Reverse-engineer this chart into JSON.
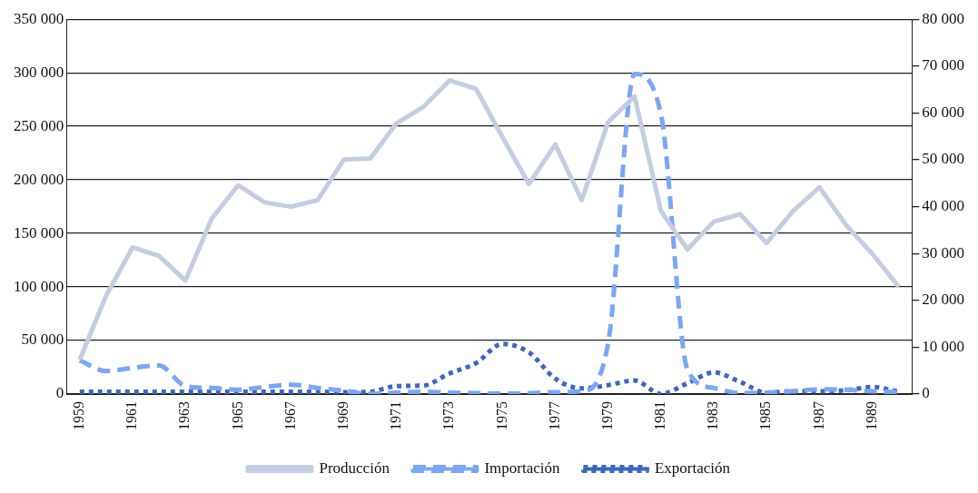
{
  "chart_data": {
    "type": "line",
    "categories": [
      "1959",
      null,
      "1961",
      null,
      "1963",
      null,
      "1965",
      null,
      "1967",
      null,
      "1969",
      null,
      "1971",
      null,
      "1973",
      null,
      "1975",
      null,
      "1977",
      null,
      "1979",
      null,
      "1981",
      null,
      "1983",
      null,
      "1985",
      null,
      "1987",
      null,
      "1989",
      null
    ],
    "series": [
      {
        "name": "Producción",
        "color": "#c5cde3",
        "line_style": "solid",
        "values": [
          32000,
          92000,
          137000,
          129000,
          106000,
          164000,
          195000,
          179000,
          175000,
          181000,
          219000,
          220000,
          253000,
          268000,
          293000,
          285000,
          240000,
          196000,
          233000,
          181000,
          254000,
          278000,
          171000,
          135000,
          161000,
          168000,
          141000,
          171000,
          193000,
          158000,
          131000,
          100000
        ]
      },
      {
        "name": "Importación",
        "color": "#7aa6f5",
        "line_style": "dashed",
        "axis": "y2",
        "values": [
          7200,
          4900,
          5600,
          6100,
          1700,
          1300,
          900,
          1500,
          2000,
          1300,
          700,
          0,
          300,
          500,
          300,
          200,
          100,
          200,
          400,
          600,
          10800,
          68300,
          59700,
          5300,
          1300,
          200,
          300,
          600,
          1000,
          900,
          600,
          400
        ]
      },
      {
        "name": "Exportación",
        "color": "#3d67bf",
        "line_style": "dotted",
        "axis": "y2",
        "values": [
          500,
          500,
          500,
          500,
          500,
          500,
          500,
          500,
          500,
          500,
          400,
          500,
          1700,
          1800,
          4400,
          6600,
          10700,
          8900,
          3300,
          1200,
          1900,
          2900,
          0,
          2300,
          4600,
          2600,
          300,
          600,
          600,
          800,
          1500,
          500
        ]
      }
    ],
    "ylim": [
      0,
      350000
    ],
    "yticks": [
      0,
      {
        "value": 50000,
        "label": "50 000"
      },
      {
        "value": 100000,
        "label": "100 000"
      },
      {
        "value": 150000,
        "label": "150 000"
      },
      {
        "value": 200000,
        "label": "200 000"
      },
      {
        "value": 250000,
        "label": "250 000"
      },
      {
        "value": 300000,
        "label": "300 000"
      },
      {
        "value": 350000,
        "label": "350 000"
      }
    ],
    "y2lim": [
      0,
      80000
    ],
    "y2ticks": [
      0,
      {
        "value": 10000,
        "label": "10 000"
      },
      {
        "value": 20000,
        "label": "20 000"
      },
      {
        "value": 30000,
        "label": "30 000"
      },
      {
        "value": 40000,
        "label": "40 000"
      },
      {
        "value": 50000,
        "label": "50 000"
      },
      {
        "value": 60000,
        "label": "60 000"
      },
      {
        "value": 70000,
        "label": "70 000"
      },
      {
        "value": 80000,
        "label": "80 000"
      }
    ],
    "grid": "y",
    "legend": "bottom",
    "marker": "none"
  }
}
